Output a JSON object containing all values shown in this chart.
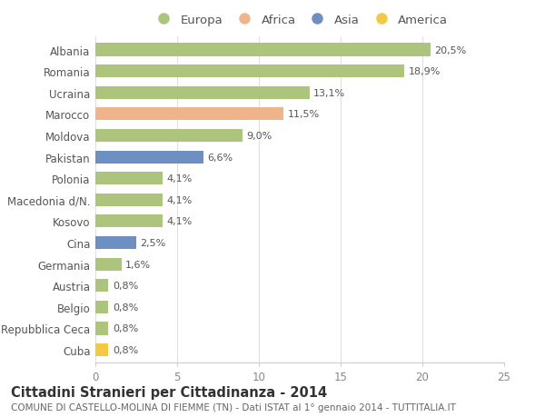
{
  "categories": [
    "Albania",
    "Romania",
    "Ucraina",
    "Marocco",
    "Moldova",
    "Pakistan",
    "Polonia",
    "Macedonia d/N.",
    "Kosovo",
    "Cina",
    "Germania",
    "Austria",
    "Belgio",
    "Repubblica Ceca",
    "Cuba"
  ],
  "values": [
    20.5,
    18.9,
    13.1,
    11.5,
    9.0,
    6.6,
    4.1,
    4.1,
    4.1,
    2.5,
    1.6,
    0.8,
    0.8,
    0.8,
    0.8
  ],
  "labels": [
    "20,5%",
    "18,9%",
    "13,1%",
    "11,5%",
    "9,0%",
    "6,6%",
    "4,1%",
    "4,1%",
    "4,1%",
    "2,5%",
    "1,6%",
    "0,8%",
    "0,8%",
    "0,8%",
    "0,8%"
  ],
  "continents": [
    "Europa",
    "Europa",
    "Europa",
    "Africa",
    "Europa",
    "Asia",
    "Europa",
    "Europa",
    "Europa",
    "Asia",
    "Europa",
    "Europa",
    "Europa",
    "Europa",
    "America"
  ],
  "continent_colors": {
    "Europa": "#adc47d",
    "Africa": "#f0b48a",
    "Asia": "#6e8fc2",
    "America": "#f5c842"
  },
  "title": "Cittadini Stranieri per Cittadinanza - 2014",
  "subtitle": "COMUNE DI CASTELLO-MOLINA DI FIEMME (TN) - Dati ISTAT al 1° gennaio 2014 - TUTTITALIA.IT",
  "xlim": [
    0,
    25
  ],
  "xticks": [
    0,
    5,
    10,
    15,
    20,
    25
  ],
  "background_color": "#ffffff",
  "bar_height": 0.6,
  "title_fontsize": 10.5,
  "subtitle_fontsize": 7.5,
  "label_fontsize": 8,
  "tick_fontsize": 8.5,
  "legend_fontsize": 9.5
}
